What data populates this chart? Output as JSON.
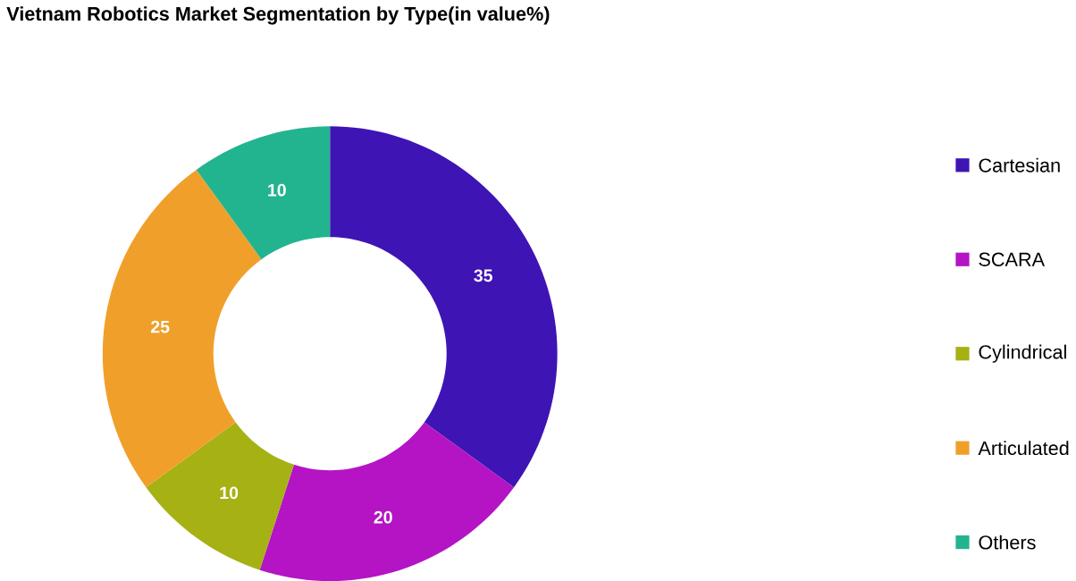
{
  "chart_data": {
    "type": "donut",
    "title": "Vietnam Robotics Market Segmentation by Type(in value%)",
    "categories": [
      "Cartesian",
      "SCARA",
      "Cylindrical",
      "Articulated",
      "Others"
    ],
    "values": [
      35,
      20,
      10,
      25,
      10
    ],
    "colors": [
      "#3f14b4",
      "#b414c4",
      "#a6b114",
      "#f0a02a",
      "#22b48e"
    ],
    "data_labels": true,
    "legend": "right"
  }
}
